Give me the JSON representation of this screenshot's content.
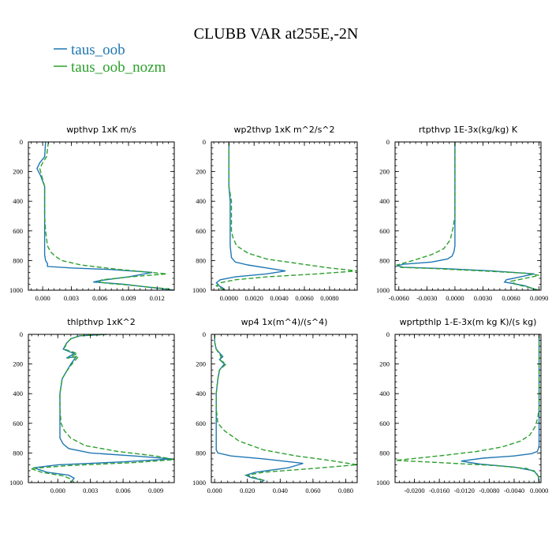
{
  "title": "CLUBB VAR at255E,-2N",
  "legend": [
    {
      "label": "taus_oob",
      "color": "#1f77b4"
    },
    {
      "label": "taus_oob_nozm",
      "color": "#2ca02c"
    }
  ],
  "chart_data": [
    {
      "type": "line",
      "title": "wpthvp   1xK m/s",
      "ylim": [
        1000,
        0
      ],
      "xlim": [
        -0.0015,
        0.0138
      ],
      "xticks": [
        {
          "v": 0.0,
          "label": "0.000"
        },
        {
          "v": 0.003,
          "label": "0.003"
        },
        {
          "v": 0.006,
          "label": "0.006"
        },
        {
          "v": 0.009,
          "label": "0.009"
        },
        {
          "v": 0.012,
          "label": "0.012"
        }
      ],
      "yticks": [
        {
          "v": 0,
          "label": "0"
        },
        {
          "v": 200,
          "label": "200"
        },
        {
          "v": 400,
          "label": "400"
        },
        {
          "v": 600,
          "label": "600"
        },
        {
          "v": 800,
          "label": "800"
        },
        {
          "v": 1000,
          "label": "1000"
        }
      ],
      "series": [
        {
          "name": "taus_oob",
          "color": "#1f77b4",
          "dash": "",
          "x": [
            0.0003,
            0.0002,
            -0.0003,
            -0.0006,
            -0.0002,
            0.0002,
            0.0002,
            0.0002,
            0.0002,
            0.0002,
            0.0002,
            0.0003,
            0.0005,
            0.0005,
            0.003,
            0.007,
            0.0115,
            0.009,
            0.006,
            0.0053,
            0.0065,
            0.0085,
            0.0105,
            0.0125,
            0.0138
          ],
          "y": [
            0,
            100,
            140,
            180,
            230,
            300,
            400,
            500,
            600,
            700,
            760,
            800,
            820,
            840,
            850,
            860,
            880,
            910,
            935,
            945,
            950,
            960,
            975,
            990,
            1000
          ]
        },
        {
          "name": "taus_oob_nozm",
          "color": "#2ca02c",
          "dash": "6,3",
          "x": [
            0.0006,
            0.0004,
            0.0,
            -0.0003,
            -0.0001,
            0.0002,
            0.0002,
            0.0002,
            0.0003,
            0.0005,
            0.0008,
            0.0013,
            0.002,
            0.004,
            0.008,
            0.013,
            0.0092,
            0.0062,
            0.0059,
            0.007,
            0.009,
            0.011,
            0.013,
            0.0138
          ],
          "y": [
            0,
            100,
            140,
            180,
            230,
            300,
            400,
            500,
            600,
            700,
            740,
            770,
            800,
            830,
            860,
            890,
            910,
            930,
            945,
            955,
            965,
            978,
            990,
            1000
          ]
        }
      ]
    },
    {
      "type": "line",
      "title": "wp2thvp   1xK m^2/s^2",
      "ylim": [
        1000,
        0
      ],
      "xlim": [
        -0.0014,
        0.0102
      ],
      "xticks": [
        {
          "v": 0.0,
          "label": "0.0000"
        },
        {
          "v": 0.002,
          "label": "0.0020"
        },
        {
          "v": 0.004,
          "label": "0.0040"
        },
        {
          "v": 0.006,
          "label": "0.0060"
        },
        {
          "v": 0.008,
          "label": "0.0080"
        }
      ],
      "yticks": [
        {
          "v": 0,
          "label": "0"
        },
        {
          "v": 200,
          "label": "200"
        },
        {
          "v": 400,
          "label": "400"
        },
        {
          "v": 600,
          "label": "600"
        },
        {
          "v": 800,
          "label": "800"
        },
        {
          "v": 1000,
          "label": "1000"
        }
      ],
      "series": [
        {
          "name": "taus_oob",
          "color": "#1f77b4",
          "dash": "",
          "x": [
            0.0,
            0.0,
            0.0,
            0.0001,
            0.0001,
            0.0001,
            0.0001,
            0.0002,
            0.0005,
            0.0015,
            0.003,
            0.0045,
            0.003,
            0.0005,
            -0.0007,
            -0.001,
            -0.0008,
            -0.0005,
            -0.0003
          ],
          "y": [
            0,
            200,
            300,
            400,
            500,
            600,
            700,
            780,
            810,
            830,
            850,
            870,
            890,
            910,
            930,
            950,
            970,
            985,
            1000
          ]
        },
        {
          "name": "taus_oob_nozm",
          "color": "#2ca02c",
          "dash": "6,3",
          "x": [
            0.0,
            0.0,
            0.0,
            0.0002,
            0.0002,
            0.0002,
            0.0003,
            0.0006,
            0.0015,
            0.003,
            0.0055,
            0.008,
            0.0102,
            0.007,
            0.003,
            0.0005,
            -0.0007,
            -0.001,
            -0.0006,
            -0.0003
          ],
          "y": [
            0,
            200,
            300,
            400,
            500,
            600,
            640,
            700,
            750,
            790,
            820,
            850,
            870,
            890,
            910,
            930,
            950,
            970,
            990,
            1000
          ]
        }
      ]
    },
    {
      "type": "line",
      "title": "rtpthvp   1E-3x(kg/kg) K",
      "ylim": [
        1000,
        0
      ],
      "xlim": [
        -0.0064,
        0.0092
      ],
      "xticks": [
        {
          "v": -0.006,
          "label": "-0.0060"
        },
        {
          "v": -0.003,
          "label": "-0.0030"
        },
        {
          "v": 0.0,
          "label": "0.0000"
        },
        {
          "v": 0.003,
          "label": "0.0030"
        },
        {
          "v": 0.006,
          "label": "0.0060"
        },
        {
          "v": 0.009,
          "label": "0.0090"
        }
      ],
      "yticks": [
        {
          "v": 0,
          "label": "0"
        },
        {
          "v": 200,
          "label": "200"
        },
        {
          "v": 400,
          "label": "400"
        },
        {
          "v": 600,
          "label": "600"
        },
        {
          "v": 800,
          "label": "800"
        },
        {
          "v": 1000,
          "label": "1000"
        }
      ],
      "series": [
        {
          "name": "taus_oob",
          "color": "#1f77b4",
          "dash": "",
          "x": [
            0.0,
            0.0,
            0.0,
            0.0,
            0.0,
            0.0,
            -0.0001,
            -0.0003,
            -0.0008,
            -0.0025,
            -0.0055,
            -0.0062,
            -0.0055,
            -0.001,
            0.004,
            0.0085,
            0.007,
            0.0055,
            0.0053,
            0.0062,
            0.0075,
            0.0088
          ],
          "y": [
            0,
            200,
            400,
            500,
            600,
            700,
            740,
            770,
            790,
            810,
            825,
            835,
            845,
            855,
            870,
            890,
            910,
            930,
            945,
            955,
            970,
            1000
          ]
        },
        {
          "name": "taus_oob_nozm",
          "color": "#2ca02c",
          "dash": "6,3",
          "x": [
            0.0,
            0.0,
            0.0,
            0.0,
            -0.0002,
            -0.0005,
            -0.0012,
            -0.0025,
            -0.0045,
            -0.0062,
            -0.006,
            -0.002,
            0.003,
            0.0075,
            0.009,
            0.0075,
            0.006,
            0.0065,
            0.0078,
            0.009
          ],
          "y": [
            0,
            200,
            400,
            500,
            580,
            660,
            720,
            760,
            800,
            830,
            845,
            855,
            870,
            885,
            900,
            920,
            940,
            960,
            980,
            1000
          ]
        }
      ]
    },
    {
      "type": "line",
      "title": "thlpthvp   1xK^2",
      "ylim": [
        1000,
        0
      ],
      "xlim": [
        -0.0027,
        0.0107
      ],
      "xticks": [
        {
          "v": 0.0,
          "label": "0.000"
        },
        {
          "v": 0.003,
          "label": "0.003"
        },
        {
          "v": 0.006,
          "label": "0.006"
        },
        {
          "v": 0.009,
          "label": "0.009"
        }
      ],
      "yticks": [
        {
          "v": 0,
          "label": "0"
        },
        {
          "v": 200,
          "label": "200"
        },
        {
          "v": 400,
          "label": "400"
        },
        {
          "v": 600,
          "label": "600"
        },
        {
          "v": 800,
          "label": "800"
        },
        {
          "v": 1000,
          "label": "1000"
        }
      ],
      "series": [
        {
          "name": "taus_oob",
          "color": "#1f77b4",
          "dash": "",
          "x": [
            0.0045,
            0.002,
            0.0012,
            0.0008,
            0.0005,
            0.0015,
            0.0008,
            0.0017,
            0.0012,
            0.0008,
            0.0004,
            0.0002,
            0.0002,
            0.0002,
            0.0002,
            0.0005,
            0.001,
            0.003,
            0.007,
            0.0105,
            0.006,
            0.0,
            -0.0022,
            -0.001,
            0.001,
            0.0015,
            0.0012
          ],
          "y": [
            0,
            10,
            30,
            60,
            100,
            130,
            160,
            150,
            200,
            250,
            300,
            400,
            500,
            600,
            700,
            740,
            770,
            800,
            820,
            840,
            860,
            880,
            900,
            930,
            950,
            970,
            1000
          ]
        },
        {
          "name": "taus_oob_nozm",
          "color": "#2ca02c",
          "dash": "6,3",
          "x": [
            0.0045,
            0.002,
            0.0012,
            0.0008,
            0.0006,
            0.0018,
            0.0009,
            0.0019,
            0.0013,
            0.0008,
            0.0004,
            0.0002,
            0.0002,
            0.0003,
            0.0006,
            0.0012,
            0.0025,
            0.0055,
            0.009,
            0.0107,
            0.007,
            0.001,
            -0.0025,
            -0.0015,
            0.0005,
            0.0012,
            0.0015
          ],
          "y": [
            0,
            10,
            30,
            60,
            100,
            130,
            160,
            150,
            200,
            250,
            300,
            400,
            500,
            600,
            650,
            700,
            750,
            790,
            820,
            845,
            865,
            885,
            905,
            930,
            955,
            975,
            1000
          ]
        }
      ]
    },
    {
      "type": "line",
      "title": "wp4   1x(m^4)/(s^4)",
      "ylim": [
        1000,
        0
      ],
      "xlim": [
        -0.002,
        0.087
      ],
      "xticks": [
        {
          "v": 0.0,
          "label": "0.000"
        },
        {
          "v": 0.02,
          "label": "0.020"
        },
        {
          "v": 0.04,
          "label": "0.040"
        },
        {
          "v": 0.06,
          "label": "0.060"
        },
        {
          "v": 0.08,
          "label": "0.080"
        }
      ],
      "yticks": [
        {
          "v": 0,
          "label": "0"
        },
        {
          "v": 200,
          "label": "200"
        },
        {
          "v": 400,
          "label": "400"
        },
        {
          "v": 600,
          "label": "600"
        },
        {
          "v": 800,
          "label": "800"
        },
        {
          "v": 1000,
          "label": "1000"
        }
      ],
      "series": [
        {
          "name": "taus_oob",
          "color": "#1f77b4",
          "dash": "",
          "x": [
            0.0,
            0.0,
            0.001,
            0.005,
            0.003,
            0.006,
            0.003,
            0.002,
            0.001,
            0.001,
            0.001,
            0.001,
            0.001,
            0.002,
            0.01,
            0.03,
            0.054,
            0.045,
            0.025,
            0.019,
            0.022,
            0.03,
            0.028
          ],
          "y": [
            0,
            50,
            100,
            150,
            170,
            200,
            240,
            300,
            400,
            500,
            600,
            700,
            780,
            800,
            820,
            840,
            870,
            900,
            930,
            950,
            965,
            985,
            1000
          ]
        },
        {
          "name": "taus_oob_nozm",
          "color": "#2ca02c",
          "dash": "6,3",
          "x": [
            0.0,
            0.0,
            0.001,
            0.004,
            0.003,
            0.007,
            0.003,
            0.002,
            0.001,
            0.001,
            0.002,
            0.006,
            0.015,
            0.03,
            0.05,
            0.07,
            0.087,
            0.06,
            0.03,
            0.02,
            0.024,
            0.03,
            0.028
          ],
          "y": [
            0,
            50,
            100,
            150,
            170,
            200,
            240,
            300,
            400,
            500,
            600,
            650,
            720,
            780,
            820,
            850,
            880,
            905,
            930,
            950,
            965,
            985,
            1000
          ]
        }
      ]
    },
    {
      "type": "line",
      "title": "wprtpthlp   1-E-3x(m kg K)/(s kg)",
      "ylim": [
        1000,
        0
      ],
      "xlim": [
        -0.0231,
        0.0003
      ],
      "xticks": [
        {
          "v": -0.02,
          "label": "-0.0200"
        },
        {
          "v": -0.016,
          "label": "-0.0160"
        },
        {
          "v": -0.012,
          "label": "-0.0120"
        },
        {
          "v": -0.008,
          "label": "-0.0080"
        },
        {
          "v": -0.004,
          "label": "-0.0040"
        },
        {
          "v": 0.0,
          "label": "0.0000"
        }
      ],
      "yticks": [
        {
          "v": 0,
          "label": "0"
        },
        {
          "v": 200,
          "label": "200"
        },
        {
          "v": 400,
          "label": "400"
        },
        {
          "v": 600,
          "label": "600"
        },
        {
          "v": 800,
          "label": "800"
        },
        {
          "v": 1000,
          "label": "1000"
        }
      ],
      "series": [
        {
          "name": "taus_oob",
          "color": "#1f77b4",
          "dash": "",
          "x": [
            0.0,
            0.0,
            0.0,
            0.0,
            0.0,
            0.0,
            -0.0001,
            -0.0003,
            -0.0012,
            -0.004,
            -0.009,
            -0.0125,
            -0.0095,
            -0.004,
            -0.0008,
            -0.0001,
            0.0
          ],
          "y": [
            0,
            200,
            400,
            600,
            700,
            750,
            770,
            790,
            805,
            820,
            835,
            855,
            875,
            895,
            920,
            960,
            1000
          ]
        },
        {
          "name": "taus_oob_nozm",
          "color": "#2ca02c",
          "dash": "6,3",
          "x": [
            0.0,
            0.0,
            0.0,
            0.0,
            -0.0002,
            -0.0006,
            -0.0015,
            -0.003,
            -0.006,
            -0.01,
            -0.015,
            -0.0195,
            -0.023,
            -0.016,
            -0.007,
            -0.002,
            -0.0005,
            -0.0001,
            0.0
          ],
          "y": [
            0,
            200,
            400,
            500,
            560,
            620,
            680,
            720,
            760,
            790,
            815,
            835,
            850,
            865,
            885,
            905,
            930,
            960,
            1000
          ]
        }
      ]
    }
  ]
}
